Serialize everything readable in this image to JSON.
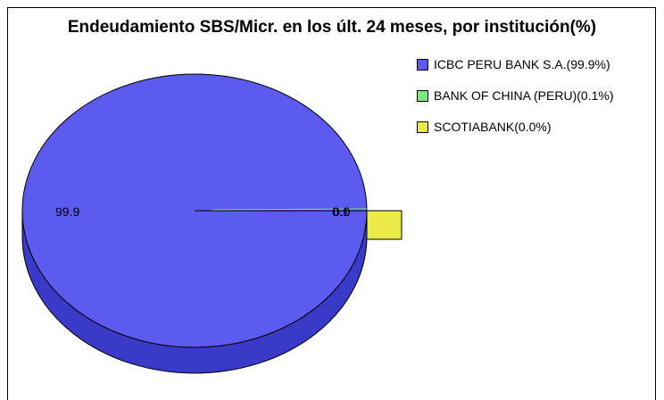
{
  "chart_data": {
    "type": "pie",
    "title": "Endeudamiento SBS/Micr. en los últ. 24 meses, por institución(%)",
    "legend_position": "top-right",
    "slices": [
      {
        "label": "ICBC PERU BANK S.A.",
        "legend": "ICBC PERU BANK S.A.(99.9%)",
        "value": 99.9,
        "data_label": "99.9",
        "color": "#5b5bf0"
      },
      {
        "label": "BANK OF CHINA (PERU)",
        "legend": "BANK OF CHINA (PERU)(0.1%)",
        "value": 0.1,
        "data_label": "0.1",
        "color": "#7ee87e"
      },
      {
        "label": "SCOTIABANK",
        "legend": "SCOTIABANK(0.0%)",
        "value": 0.0,
        "data_label": "0.0",
        "color": "#eaea4a"
      }
    ]
  }
}
